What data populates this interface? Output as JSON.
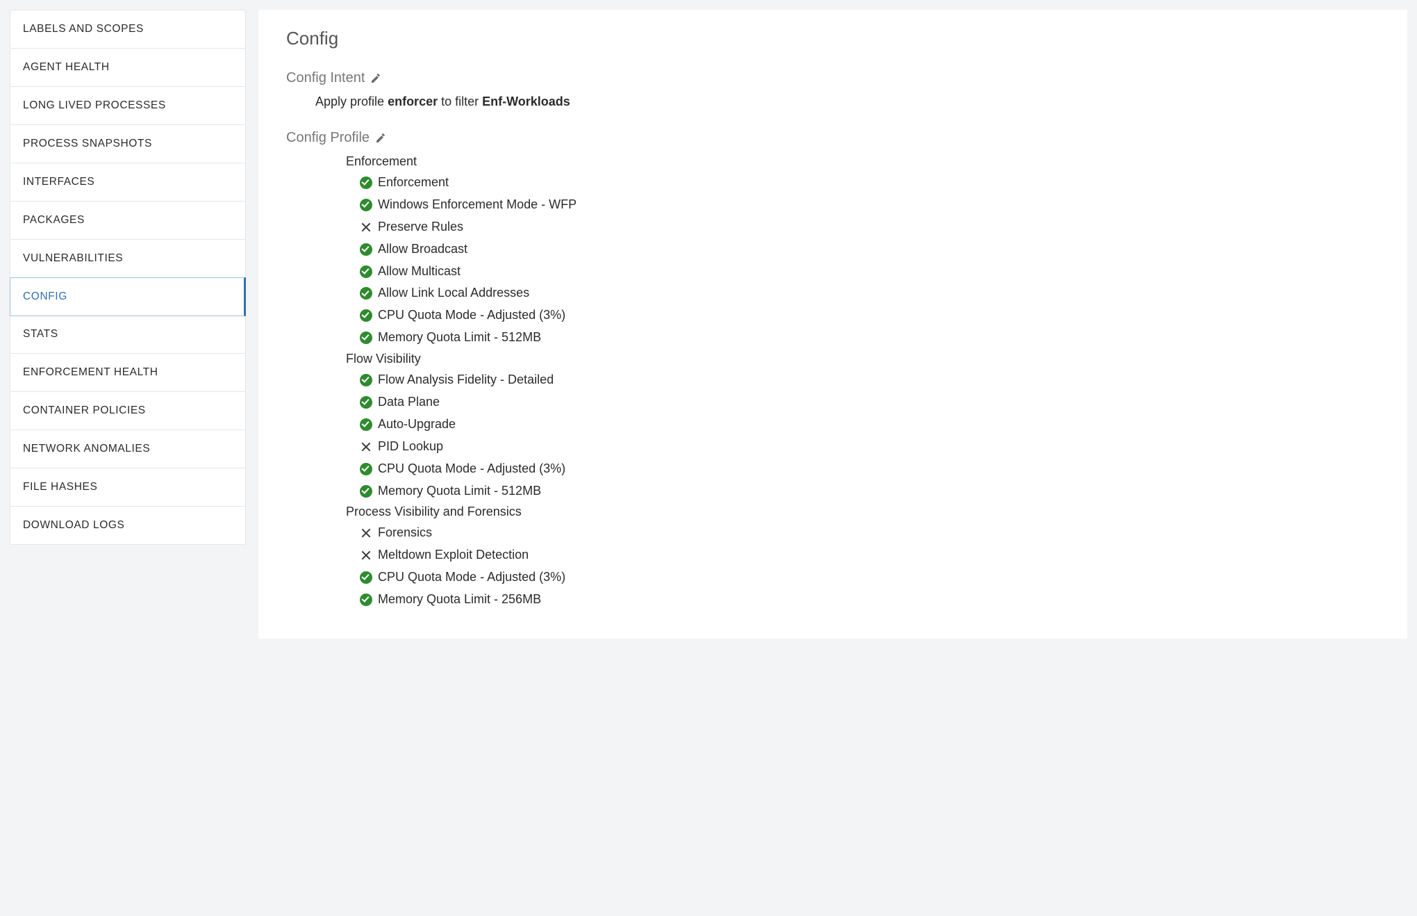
{
  "sidebar": {
    "items": [
      {
        "label": "LABELS AND SCOPES",
        "key": "labels-and-scopes"
      },
      {
        "label": "AGENT HEALTH",
        "key": "agent-health"
      },
      {
        "label": "LONG LIVED PROCESSES",
        "key": "long-lived-processes"
      },
      {
        "label": "PROCESS SNAPSHOTS",
        "key": "process-snapshots"
      },
      {
        "label": "INTERFACES",
        "key": "interfaces"
      },
      {
        "label": "PACKAGES",
        "key": "packages"
      },
      {
        "label": "VULNERABILITIES",
        "key": "vulnerabilities"
      },
      {
        "label": "CONFIG",
        "key": "config"
      },
      {
        "label": "STATS",
        "key": "stats"
      },
      {
        "label": "ENFORCEMENT HEALTH",
        "key": "enforcement-health"
      },
      {
        "label": "CONTAINER POLICIES",
        "key": "container-policies"
      },
      {
        "label": "NETWORK ANOMALIES",
        "key": "network-anomalies"
      },
      {
        "label": "FILE HASHES",
        "key": "file-hashes"
      },
      {
        "label": "DOWNLOAD LOGS",
        "key": "download-logs"
      }
    ],
    "active_key": "config"
  },
  "main": {
    "title": "Config",
    "intent": {
      "header": "Config Intent",
      "prefix": "Apply profile ",
      "profile": "enforcer",
      "mid": " to filter ",
      "filter": "Enf-Workloads"
    },
    "profile": {
      "header": "Config Profile",
      "groups": [
        {
          "title": "Enforcement",
          "items": [
            {
              "status": "check",
              "label": "Enforcement"
            },
            {
              "status": "check",
              "label": "Windows Enforcement Mode - WFP"
            },
            {
              "status": "x",
              "label": "Preserve Rules"
            },
            {
              "status": "check",
              "label": "Allow Broadcast"
            },
            {
              "status": "check",
              "label": "Allow Multicast"
            },
            {
              "status": "check",
              "label": "Allow Link Local Addresses"
            },
            {
              "status": "check",
              "label": "CPU Quota Mode - Adjusted (3%)"
            },
            {
              "status": "check",
              "label": "Memory Quota Limit - 512MB"
            }
          ]
        },
        {
          "title": "Flow Visibility",
          "items": [
            {
              "status": "check",
              "label": "Flow Analysis Fidelity - Detailed"
            },
            {
              "status": "check",
              "label": "Data Plane"
            },
            {
              "status": "check",
              "label": "Auto-Upgrade"
            },
            {
              "status": "x",
              "label": "PID Lookup"
            },
            {
              "status": "check",
              "label": "CPU Quota Mode - Adjusted (3%)"
            },
            {
              "status": "check",
              "label": "Memory Quota Limit - 512MB"
            }
          ]
        },
        {
          "title": "Process Visibility and Forensics",
          "items": [
            {
              "status": "x",
              "label": "Forensics"
            },
            {
              "status": "x",
              "label": "Meltdown Exploit Detection"
            },
            {
              "status": "check",
              "label": "CPU Quota Mode - Adjusted (3%)"
            },
            {
              "status": "check",
              "label": "Memory Quota Limit - 256MB"
            }
          ]
        }
      ]
    }
  },
  "colors": {
    "check_bg": "#2e8b2e",
    "active_text": "#2f6fb3",
    "active_border": "#9cc2de",
    "bg": "#f3f4f5",
    "panel_bg": "#ffffff",
    "border": "#e5e6e8",
    "text": "#2b2b2b",
    "muted": "#777777"
  }
}
